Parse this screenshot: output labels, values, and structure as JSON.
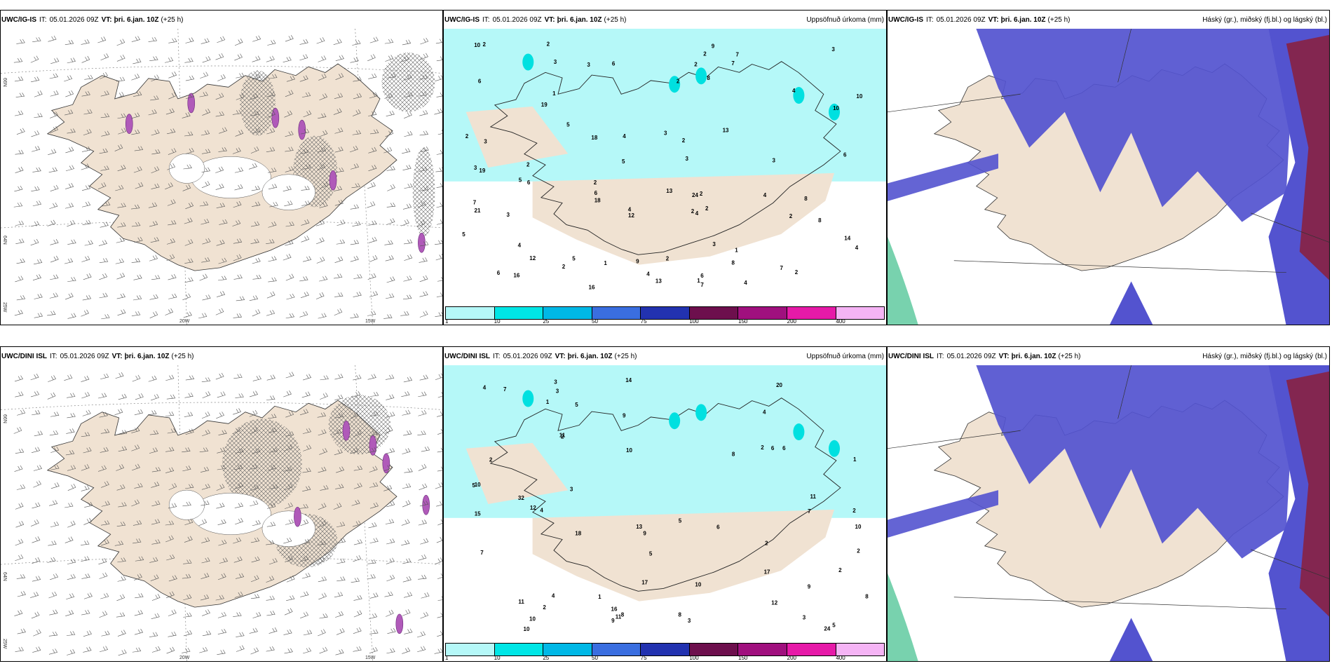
{
  "colors": {
    "land": "#f0e2d2",
    "precip_cyan": "#b5f8f8",
    "precip_bright": "#00e0e0",
    "cloud_blue": "#5353cf",
    "cloud_red": "#8c1f3a",
    "magenta": "#b05ab9",
    "sea": "#ffffff"
  },
  "header": {
    "it_label": "IT:",
    "it_value": "05.01.2026 09Z",
    "vt_label": "VT:",
    "vt_value": "þri. 6.jan. 10Z",
    "lead": "(+25 h)"
  },
  "rows": [
    {
      "model": "UWC/IG-IS",
      "panels": [
        {
          "id": "wind",
          "right_title": ""
        },
        {
          "id": "precip",
          "right_title": "Uppsöfnuð úrkoma (mm)"
        },
        {
          "id": "clouds",
          "right_title": "Háský (gr.), miðský (fj.bl.) og lágský (bl.)"
        }
      ]
    },
    {
      "model": "UWC/DINI ISL",
      "panels": [
        {
          "id": "wind",
          "right_title": ""
        },
        {
          "id": "precip",
          "right_title": "Uppsöfnuð úrkoma (mm)"
        },
        {
          "id": "clouds",
          "right_title": "Háský (gr.), miðský (fj.bl.) og lágský (bl.)"
        }
      ]
    }
  ],
  "grid_labels": {
    "lon_20": "20W",
    "lon_15": "15W",
    "lat_66": "66N",
    "lat_64": "64N",
    "lat_25w": "25W"
  },
  "scale": {
    "ticks": [
      "1",
      "10",
      "25",
      "50",
      "75",
      "100",
      "150",
      "200",
      "400"
    ],
    "colors": [
      "#b5f8f8",
      "#00e6e6",
      "#00b8e6",
      "#3a6ee0",
      "#2232b0",
      "#6d0f4d",
      "#a0107e",
      "#e61aa8",
      "#f5b4f5"
    ]
  },
  "precip_values_top": [
    "2",
    "3",
    "3",
    "4",
    "2",
    "4",
    "3",
    "2",
    "18",
    "3",
    "12",
    "2",
    "3",
    "4",
    "2",
    "14",
    "13",
    "21",
    "16",
    "19",
    "7",
    "24",
    "12",
    "16",
    "10",
    "9",
    "8",
    "19",
    "5",
    "4",
    "6",
    "18",
    "6",
    "6",
    "13",
    "2",
    "4",
    "5",
    "2",
    "1",
    "2",
    "2",
    "10",
    "3",
    "7",
    "5",
    "7",
    "6",
    "9",
    "10",
    "8",
    "4",
    "3",
    "2",
    "4",
    "13",
    "5",
    "3",
    "1",
    "2",
    "2",
    "1",
    "1",
    "4",
    "6",
    "8",
    "7",
    "6",
    "2",
    "2",
    "3",
    "2",
    "4",
    "3",
    "5",
    "2",
    "7",
    "6",
    "8"
  ],
  "precip_values_bottom": [
    "2",
    "3",
    "3",
    "5",
    "2",
    "4",
    "2",
    "11",
    "18",
    "12",
    "14",
    "20",
    "32",
    "24",
    "10",
    "8",
    "15",
    "9",
    "4",
    "10",
    "4",
    "8",
    "6",
    "12",
    "10",
    "17",
    "13",
    "11",
    "9",
    "8",
    "7",
    "5",
    "10",
    "3",
    "16",
    "11",
    "10",
    "9",
    "6",
    "5",
    "7",
    "10",
    "3",
    "5",
    "2",
    "1",
    "1",
    "2",
    "2",
    "1",
    "17",
    "11",
    "9",
    "5",
    "6",
    "8",
    "7",
    "2",
    "4",
    "3",
    "2"
  ]
}
